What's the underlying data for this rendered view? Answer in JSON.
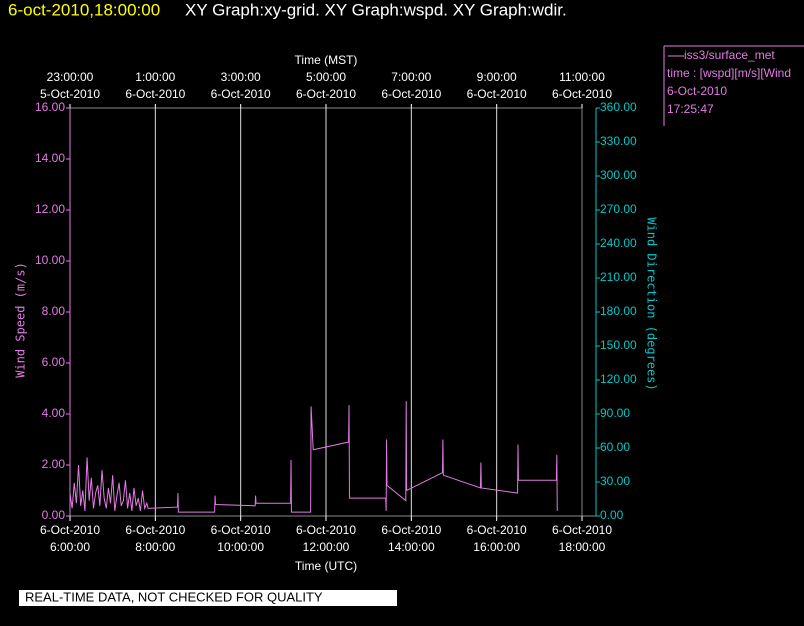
{
  "header": {
    "timestamp": "6-oct-2010,18:00:00",
    "title": "XY Graph:xy-grid.  XY Graph:wspd.  XY Graph:wdir."
  },
  "chart_data": {
    "type": "line",
    "xlabel": "Time (UTC)",
    "x2label": "Time (MST)",
    "ylabel": "Wind Speed (m/s)",
    "y2label": "Wind Direction (degrees)",
    "xlim": [
      6,
      18
    ],
    "xticks": [
      {
        "value": 6,
        "label": [
          "6-Oct-2010",
          "6:00:00"
        ]
      },
      {
        "value": 8,
        "label": [
          "6-Oct-2010",
          "8:00:00"
        ]
      },
      {
        "value": 10,
        "label": [
          "6-Oct-2010",
          "10:00:00"
        ]
      },
      {
        "value": 12,
        "label": [
          "6-Oct-2010",
          "12:00:00"
        ]
      },
      {
        "value": 14,
        "label": [
          "6-Oct-2010",
          "14:00:00"
        ]
      },
      {
        "value": 16,
        "label": [
          "6-Oct-2010",
          "16:00:00"
        ]
      },
      {
        "value": 18,
        "label": [
          "6-Oct-2010",
          "18:00:00"
        ]
      }
    ],
    "x2lim": [
      23,
      35
    ],
    "x2ticks": [
      {
        "value": 23,
        "label": [
          "23:00:00",
          "5-Oct-2010"
        ]
      },
      {
        "value": 25,
        "label": [
          "1:00:00",
          "6-Oct-2010"
        ]
      },
      {
        "value": 27,
        "label": [
          "3:00:00",
          "6-Oct-2010"
        ]
      },
      {
        "value": 29,
        "label": [
          "5:00:00",
          "6-Oct-2010"
        ]
      },
      {
        "value": 31,
        "label": [
          "7:00:00",
          "6-Oct-2010"
        ]
      },
      {
        "value": 33,
        "label": [
          "9:00:00",
          "6-Oct-2010"
        ]
      },
      {
        "value": 35,
        "label": [
          "11:00:00",
          "6-Oct-2010"
        ]
      }
    ],
    "ylim": [
      0,
      16
    ],
    "yticks": [
      {
        "value": 0,
        "label": "0.00"
      },
      {
        "value": 2,
        "label": "2.00"
      },
      {
        "value": 4,
        "label": "4.00"
      },
      {
        "value": 6,
        "label": "6.00"
      },
      {
        "value": 8,
        "label": "8.00"
      },
      {
        "value": 10,
        "label": "10.00"
      },
      {
        "value": 12,
        "label": "12.00"
      },
      {
        "value": 14,
        "label": "14.00"
      },
      {
        "value": 16,
        "label": "16.00"
      }
    ],
    "y2lim": [
      0,
      360
    ],
    "y2ticks": [
      {
        "value": 0,
        "label": "0.00"
      },
      {
        "value": 30,
        "label": "30.00"
      },
      {
        "value": 60,
        "label": "60.00"
      },
      {
        "value": 90,
        "label": "90.00"
      },
      {
        "value": 120,
        "label": "120.00"
      },
      {
        "value": 150,
        "label": "150.00"
      },
      {
        "value": 180,
        "label": "180.00"
      },
      {
        "value": 210,
        "label": "210.00"
      },
      {
        "value": 240,
        "label": "240.00"
      },
      {
        "value": 270,
        "label": "270.00"
      },
      {
        "value": 300,
        "label": "300.00"
      },
      {
        "value": 330,
        "label": "330.00"
      },
      {
        "value": 360,
        "label": "360.00"
      }
    ],
    "grid": true,
    "ycolor": "#e37be3",
    "y2color": "#00c8c8",
    "series": [
      {
        "name": "iss3/surface_met",
        "color": "#e37be3",
        "x": [
          6.0,
          6.05,
          6.1,
          6.15,
          6.2,
          6.25,
          6.3,
          6.35,
          6.4,
          6.45,
          6.5,
          6.55,
          6.6,
          6.65,
          6.7,
          6.75,
          6.8,
          6.85,
          6.9,
          6.95,
          7.0,
          7.05,
          7.1,
          7.15,
          7.2,
          7.25,
          7.3,
          7.35,
          7.4,
          7.45,
          7.5,
          7.55,
          7.6,
          7.65,
          7.7,
          7.75,
          7.8,
          7.83,
          8.52,
          8.53,
          8.54,
          9.39,
          9.4,
          9.41,
          10.34,
          10.35,
          10.36,
          11.17,
          11.18,
          11.19,
          11.64,
          11.65,
          11.7,
          12.53,
          12.54,
          12.55,
          13.4,
          13.41,
          13.42,
          13.43,
          13.87,
          13.88,
          13.89,
          14.73,
          14.74,
          14.75,
          15.62,
          15.63,
          15.64,
          16.49,
          16.5,
          16.51,
          17.4,
          17.41,
          17.42
        ],
        "values": [
          0.9,
          0.3,
          1.3,
          0.5,
          2.0,
          0.4,
          1.0,
          0.2,
          2.3,
          0.6,
          1.5,
          0.3,
          0.9,
          1.2,
          0.4,
          1.8,
          0.7,
          0.3,
          1.1,
          0.5,
          1.6,
          0.2,
          0.8,
          1.3,
          0.4,
          0.6,
          1.4,
          0.3,
          0.9,
          0.2,
          1.1,
          0.4,
          0.7,
          0.2,
          1.0,
          0.3,
          0.5,
          0.3,
          0.35,
          0.9,
          0.15,
          0.15,
          0.8,
          0.45,
          0.4,
          0.8,
          0.5,
          0.5,
          2.2,
          0.15,
          0.15,
          4.3,
          2.6,
          2.9,
          4.35,
          0.7,
          0.7,
          0.2,
          3.0,
          1.2,
          0.6,
          4.5,
          1.0,
          1.7,
          3.0,
          1.6,
          1.1,
          2.1,
          1.1,
          0.9,
          2.8,
          1.4,
          1.4,
          2.4,
          0.2
        ]
      }
    ],
    "legend_info": [
      "time : [wspd][m/s][Wind",
      "6-Oct-2010",
      "17:25:47"
    ]
  },
  "footer": {
    "notice": "REAL-TIME DATA, NOT CHECKED FOR QUALITY"
  }
}
